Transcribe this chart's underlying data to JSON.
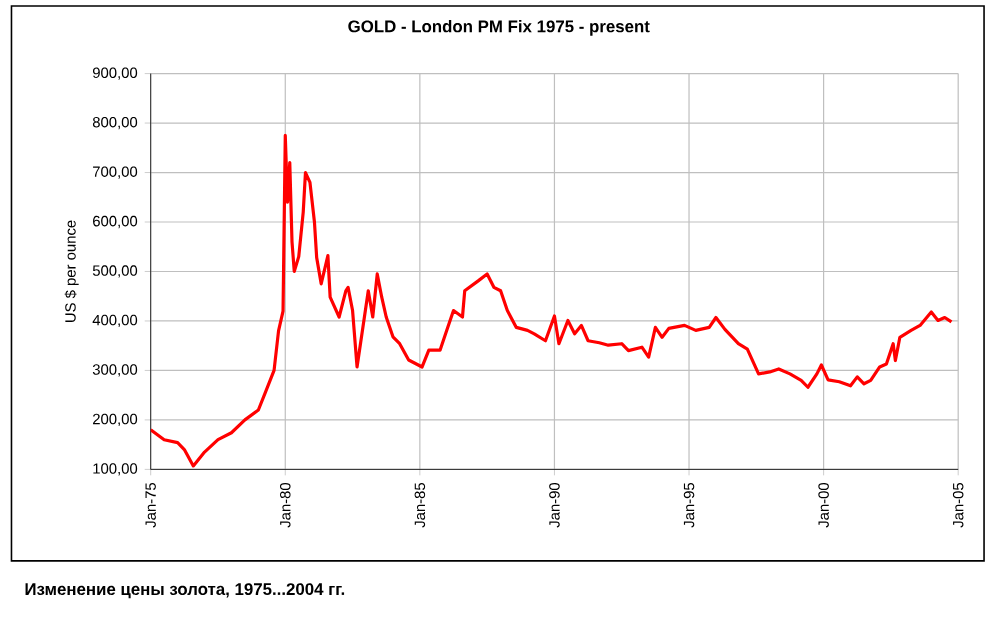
{
  "chart_data": {
    "type": "line",
    "title": "GOLD - London PM Fix 1975 - present",
    "ylabel": "US $ per ounce",
    "annotations": [
      "Изменение цены золота, 1975...2004 гг."
    ],
    "x": [
      "1975-01",
      "1975-07",
      "1976-01",
      "1976-04",
      "1976-08",
      "1977-01",
      "1977-07",
      "1978-01",
      "1978-07",
      "1979-01",
      "1979-04",
      "1979-08",
      "1979-10",
      "1979-12",
      "1980-01",
      "1980-02",
      "1980-03",
      "1980-04",
      "1980-05",
      "1980-07",
      "1980-09",
      "1980-10",
      "1980-12",
      "1981-02",
      "1981-03",
      "1981-05",
      "1981-08",
      "1981-09",
      "1982-01",
      "1982-04",
      "1982-05",
      "1982-07",
      "1982-09",
      "1983-02",
      "1983-04",
      "1983-06",
      "1983-08",
      "1983-10",
      "1984-01",
      "1984-04",
      "1984-08",
      "1985-02",
      "1985-05",
      "1985-10",
      "1986-01",
      "1986-04",
      "1986-08",
      "1986-09",
      "1987-03",
      "1987-07",
      "1987-10",
      "1988-01",
      "1988-04",
      "1988-08",
      "1989-01",
      "1989-04",
      "1989-09",
      "1990-01",
      "1990-03",
      "1990-07",
      "1990-10",
      "1991-01",
      "1991-04",
      "1991-09",
      "1992-01",
      "1992-07",
      "1992-10",
      "1993-04",
      "1993-07",
      "1993-10",
      "1994-01",
      "1994-04",
      "1994-11",
      "1995-04",
      "1995-10",
      "1996-01",
      "1996-05",
      "1996-11",
      "1997-03",
      "1997-08",
      "1998-01",
      "1998-05",
      "1998-10",
      "1999-03",
      "1999-06",
      "1999-10",
      "1999-12",
      "2000-03",
      "2000-08",
      "2001-01",
      "2001-04",
      "2001-07",
      "2001-10",
      "2002-02",
      "2002-05",
      "2002-08",
      "2002-09",
      "2002-11",
      "2003-04",
      "2003-08",
      "2004-01",
      "2004-04",
      "2004-07",
      "2004-10"
    ],
    "series": [
      {
        "color": "#ff0000",
        "values": [
          180,
          160,
          154,
          140,
          107,
          135,
          160,
          174,
          200,
          220,
          254,
          300,
          380,
          420,
          775,
          640,
          720,
          560,
          500,
          530,
          620,
          700,
          680,
          600,
          528,
          475,
          532,
          448,
          408,
          461,
          468,
          421,
          307,
          461,
          408,
          495,
          448,
          408,
          368,
          354,
          321,
          307,
          341,
          341,
          381,
          421,
          408,
          461,
          481,
          495,
          468,
          461,
          421,
          387,
          381,
          374,
          360,
          410,
          354,
          401,
          374,
          391,
          360,
          356,
          351,
          354,
          340,
          347,
          327,
          387,
          367,
          385,
          391,
          381,
          387,
          407,
          383,
          354,
          343,
          293,
          297,
          303,
          293,
          280,
          266,
          293,
          311,
          281,
          277,
          269,
          287,
          273,
          280,
          307,
          313,
          354,
          320,
          367,
          381,
          391,
          418,
          401,
          407,
          398
        ]
      }
    ],
    "xlim": [
      "1975-01",
      "2005-01"
    ],
    "xticks": [
      {
        "value": "1975-01",
        "label": "Jan-75"
      },
      {
        "value": "1980-01",
        "label": "Jan-80"
      },
      {
        "value": "1985-01",
        "label": "Jan-85"
      },
      {
        "value": "1990-01",
        "label": "Jan-90"
      },
      {
        "value": "1995-01",
        "label": "Jan-95"
      },
      {
        "value": "2000-01",
        "label": "Jan-00"
      },
      {
        "value": "2005-01",
        "label": "Jan-05"
      }
    ],
    "ylim": [
      100,
      900
    ],
    "yticks": [
      {
        "value": 100,
        "label": "100,00"
      },
      {
        "value": 200,
        "label": "200,00"
      },
      {
        "value": 300,
        "label": "300,00"
      },
      {
        "value": 400,
        "label": "400,00"
      },
      {
        "value": 500,
        "label": "500,00"
      },
      {
        "value": 600,
        "label": "600,00"
      },
      {
        "value": 700,
        "label": "700,00"
      },
      {
        "value": 800,
        "label": "800,00"
      },
      {
        "value": 900,
        "label": "900,00"
      }
    ],
    "grid": true,
    "marker": "none",
    "line_style": "solid"
  }
}
